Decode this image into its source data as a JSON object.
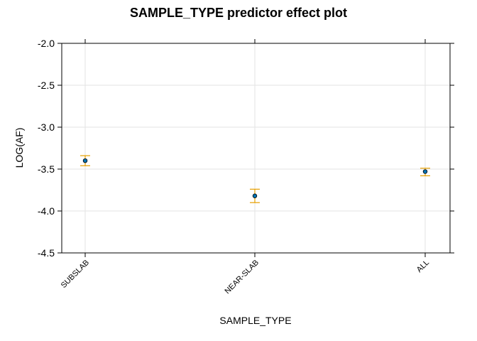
{
  "chart_data": {
    "type": "scatter",
    "title": "SAMPLE_TYPE predictor effect plot",
    "xlabel": "SAMPLE_TYPE",
    "ylabel": "LOG(AF)",
    "categories": [
      "SUBSLAB",
      "NEAR-SLAB",
      "ALL"
    ],
    "values": [
      -3.4,
      -3.82,
      -3.53
    ],
    "lower": [
      -3.46,
      -3.9,
      -3.58
    ],
    "upper": [
      -3.34,
      -3.74,
      -3.49
    ],
    "ylim": [
      -4.5,
      -2.0
    ],
    "yticks": [
      "-2.0",
      "-2.5",
      "-3.0",
      "-3.5",
      "-4.0",
      "-4.5"
    ],
    "grid": true,
    "colors": {
      "point": "#0072b2",
      "interval": "#e69f00",
      "grid": "#e3e3e3"
    }
  }
}
